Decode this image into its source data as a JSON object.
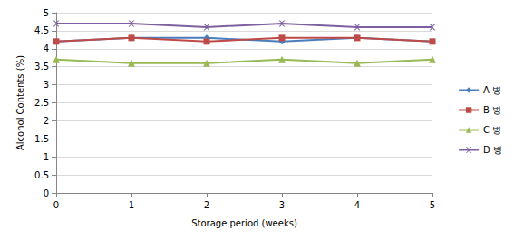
{
  "chart_data": {
    "type": "line",
    "x_label": "Storage period (weeks)",
    "y_label": "Alcohol Contents (%)",
    "categories": [
      "0",
      "1",
      "2",
      "3",
      "4",
      "5"
    ],
    "series": [
      {
        "name": "A 병",
        "color": "#4a7ebb",
        "marker": "diamond",
        "values": [
          4.2,
          4.3,
          4.3,
          4.2,
          4.3,
          4.2
        ]
      },
      {
        "name": "B 병",
        "color": "#be4b48",
        "marker": "square",
        "values": [
          4.2,
          4.3,
          4.2,
          4.3,
          4.3,
          4.2
        ]
      },
      {
        "name": "C 병",
        "color": "#98b954",
        "marker": "triangle",
        "values": [
          3.7,
          3.6,
          3.6,
          3.7,
          3.6,
          3.7
        ]
      },
      {
        "name": "D 병",
        "color": "#7d60a0",
        "marker": "x",
        "values": [
          4.7,
          4.7,
          4.6,
          4.7,
          4.6,
          4.6
        ]
      }
    ],
    "ylim": [
      0,
      5
    ],
    "yticks": [
      0,
      0.5,
      1,
      1.5,
      2,
      2.5,
      3,
      3.5,
      4,
      4.5,
      5
    ],
    "grid": true,
    "legend": "right"
  }
}
